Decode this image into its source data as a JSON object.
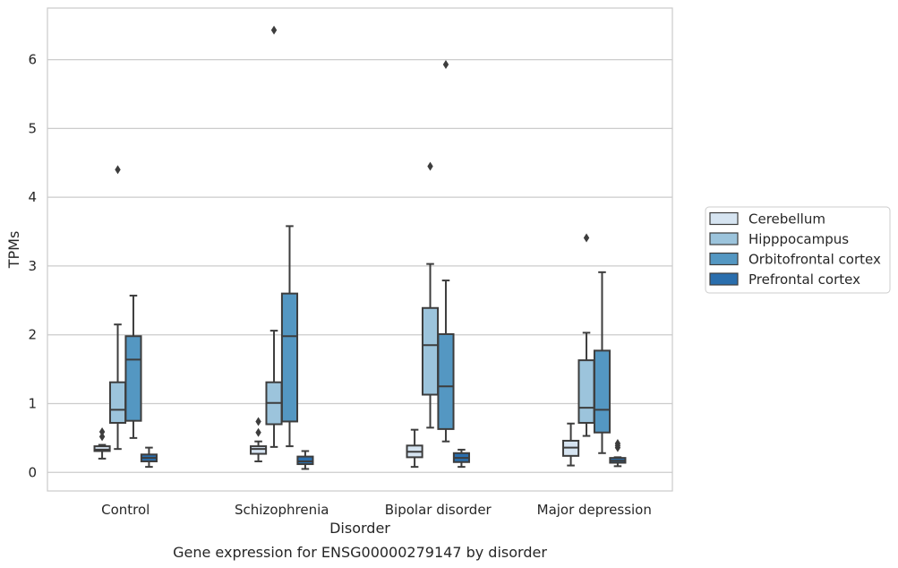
{
  "chart_data": {
    "type": "box",
    "title": "",
    "caption": "Gene expression for ENSG00000279147 by disorder",
    "xlabel": "Disorder",
    "ylabel": "TPMs",
    "ylim": [
      -0.27,
      6.75
    ],
    "yticks": [
      0,
      1,
      2,
      3,
      4,
      5,
      6
    ],
    "grid": "horizontal",
    "legend_position": "right",
    "categories": [
      "Control",
      "Schizophrenia",
      "Bipolar disorder",
      "Major depression"
    ],
    "series": [
      {
        "name": "Cerebellum",
        "color": "#d6e4f1",
        "boxes": [
          {
            "whislo": 0.2,
            "q1": 0.31,
            "med": 0.33,
            "q3": 0.38,
            "whishi": 0.4,
            "fliers": [
              0.52,
              0.59
            ]
          },
          {
            "whislo": 0.16,
            "q1": 0.27,
            "med": 0.34,
            "q3": 0.38,
            "whishi": 0.45,
            "fliers": [
              0.58,
              0.74
            ]
          },
          {
            "whislo": 0.08,
            "q1": 0.22,
            "med": 0.3,
            "q3": 0.39,
            "whishi": 0.62,
            "fliers": []
          },
          {
            "whislo": 0.1,
            "q1": 0.24,
            "med": 0.36,
            "q3": 0.46,
            "whishi": 0.71,
            "fliers": []
          }
        ]
      },
      {
        "name": "Hipppocampus",
        "color": "#9cc4dc",
        "boxes": [
          {
            "whislo": 0.34,
            "q1": 0.72,
            "med": 0.91,
            "q3": 1.31,
            "whishi": 2.15,
            "fliers": [
              4.4
            ]
          },
          {
            "whislo": 0.37,
            "q1": 0.7,
            "med": 1.01,
            "q3": 1.31,
            "whishi": 2.06,
            "fliers": [
              6.43
            ]
          },
          {
            "whislo": 0.65,
            "q1": 1.13,
            "med": 1.85,
            "q3": 2.39,
            "whishi": 3.03,
            "fliers": [
              4.45
            ]
          },
          {
            "whislo": 0.53,
            "q1": 0.72,
            "med": 0.94,
            "q3": 1.63,
            "whishi": 2.03,
            "fliers": [
              3.41
            ]
          }
        ]
      },
      {
        "name": "Orbitofrontal cortex",
        "color": "#5497c2",
        "boxes": [
          {
            "whislo": 0.5,
            "q1": 0.75,
            "med": 1.64,
            "q3": 1.98,
            "whishi": 2.57,
            "fliers": []
          },
          {
            "whislo": 0.38,
            "q1": 0.74,
            "med": 1.98,
            "q3": 2.6,
            "whishi": 3.58,
            "fliers": []
          },
          {
            "whislo": 0.45,
            "q1": 0.63,
            "med": 1.25,
            "q3": 2.01,
            "whishi": 2.79,
            "fliers": [
              5.93
            ]
          },
          {
            "whislo": 0.28,
            "q1": 0.58,
            "med": 0.91,
            "q3": 1.77,
            "whishi": 2.91,
            "fliers": []
          }
        ]
      },
      {
        "name": "Prefrontal cortex",
        "color": "#2a6ead",
        "boxes": [
          {
            "whislo": 0.08,
            "q1": 0.16,
            "med": 0.21,
            "q3": 0.26,
            "whishi": 0.36,
            "fliers": []
          },
          {
            "whislo": 0.05,
            "q1": 0.12,
            "med": 0.16,
            "q3": 0.23,
            "whishi": 0.31,
            "fliers": []
          },
          {
            "whislo": 0.08,
            "q1": 0.15,
            "med": 0.21,
            "q3": 0.28,
            "whishi": 0.33,
            "fliers": []
          },
          {
            "whislo": 0.09,
            "q1": 0.14,
            "med": 0.17,
            "q3": 0.21,
            "whishi": 0.22,
            "fliers": [
              0.36,
              0.39,
              0.42
            ]
          }
        ]
      }
    ]
  }
}
